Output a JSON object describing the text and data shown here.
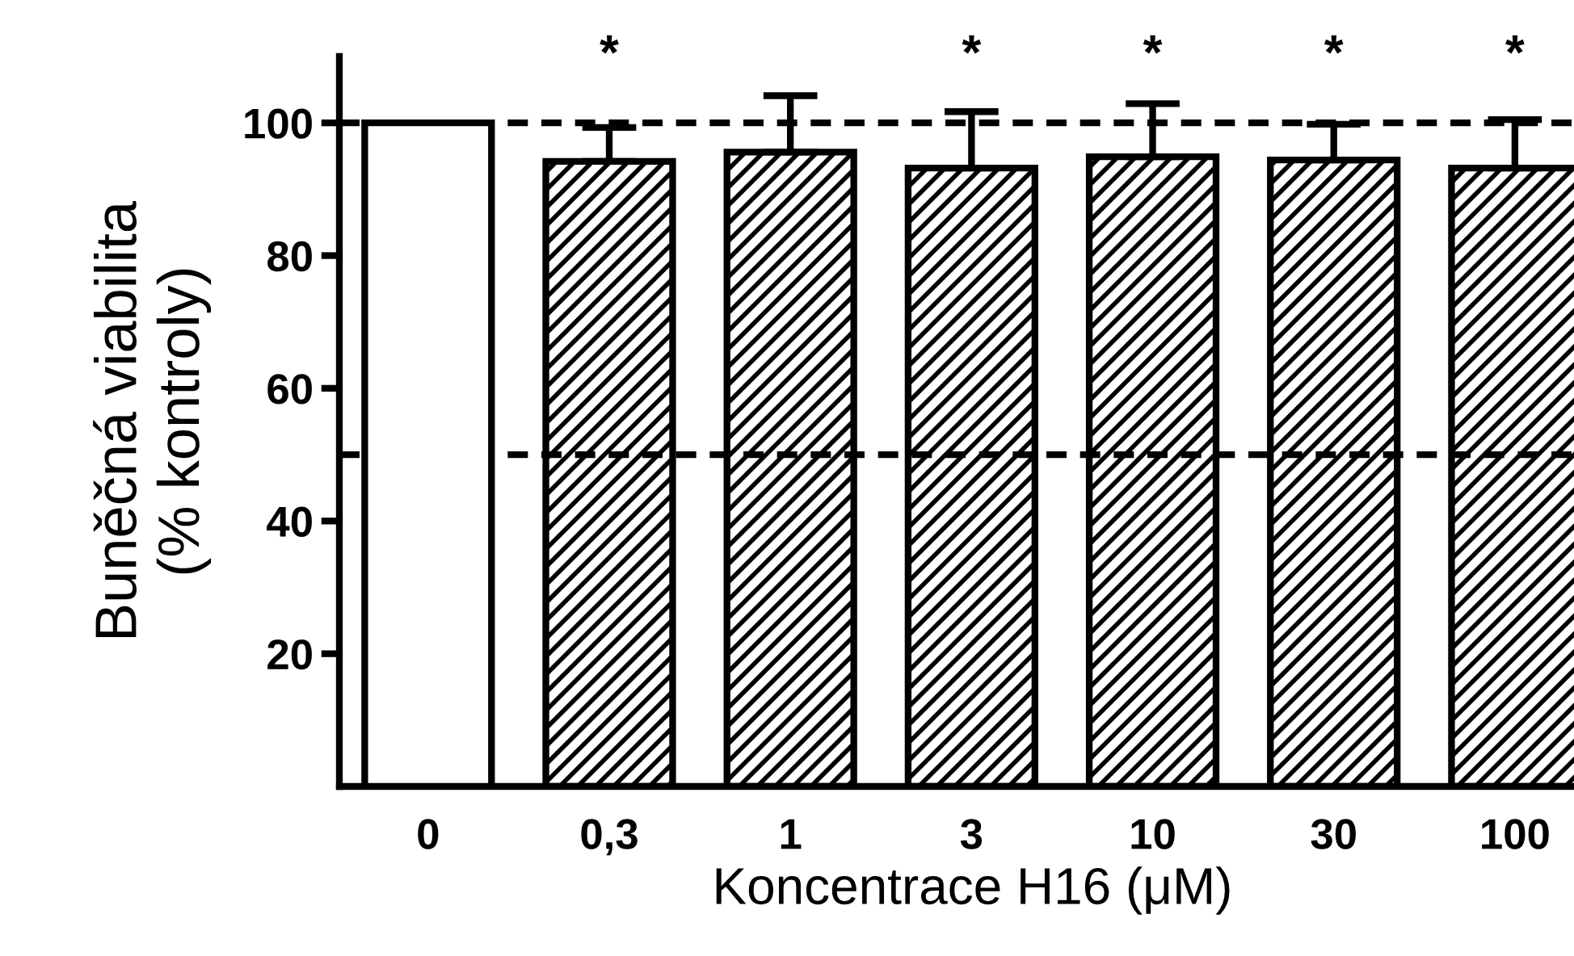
{
  "chart_data": {
    "type": "bar",
    "xlabel": "Koncentrace H16 (μM)",
    "ylabel": "Buněčná viabilita\n(% kontroly)",
    "categories": [
      "0",
      "0,3",
      "1",
      "3",
      "10",
      "30",
      "100"
    ],
    "values": [
      100,
      94.2,
      95.6,
      93.2,
      94.9,
      94.4,
      93.2
    ],
    "colors": [
      "#ffffff",
      "#000000",
      "#000000",
      "#000000",
      "#000000",
      "#000000",
      "#000000"
    ],
    "errors": [
      null,
      [
        94.2,
        99.3
      ],
      [
        95.6,
        104.1
      ],
      [
        93.2,
        101.7
      ],
      [
        94.9,
        102.9
      ],
      [
        94.4,
        99.8
      ],
      [
        93.2,
        100.5
      ]
    ],
    "ylim": [
      0,
      110
    ],
    "yticks": [
      20,
      40,
      60,
      80,
      100
    ],
    "ref_lines": [
      {
        "axis": "y",
        "value": 100,
        "color": "#000000",
        "line_style": "dashed"
      },
      {
        "axis": "y",
        "value": 50,
        "color": "#000000",
        "line_style": "dashed"
      }
    ],
    "value_labels": [
      null,
      "*",
      null,
      "*",
      "*",
      "*",
      "*"
    ],
    "grid": false
  }
}
